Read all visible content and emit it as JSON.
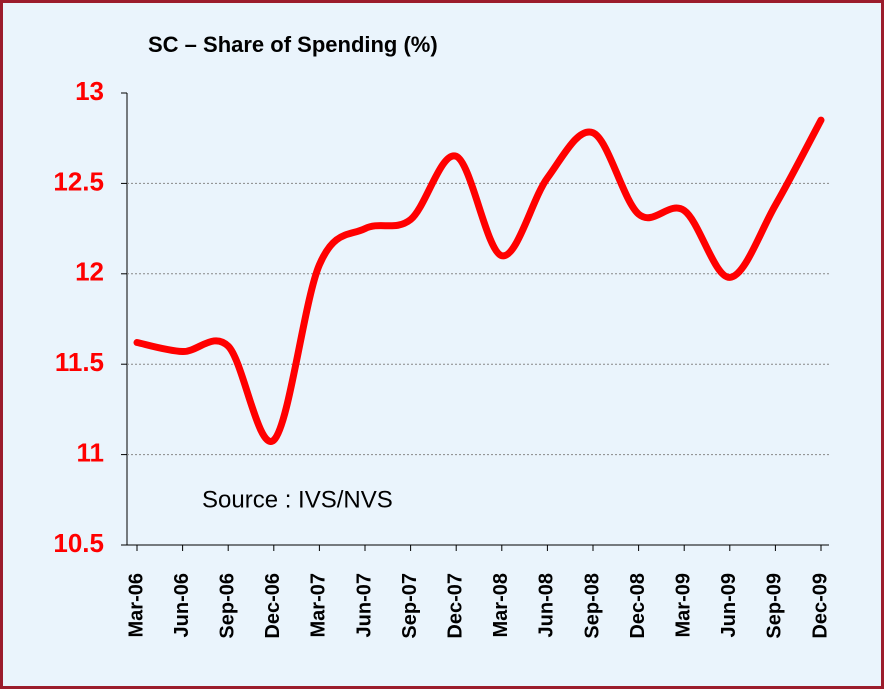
{
  "chart_data": {
    "type": "line",
    "title": "SC – Share of Spending (%)",
    "annotation": "Source :  IVS/NVS",
    "categories": [
      "Mar-06",
      "Jun-06",
      "Sep-06",
      "Dec-06",
      "Mar-07",
      "Jun-07",
      "Sep-07",
      "Dec-07",
      "Mar-08",
      "Jun-08",
      "Sep-08",
      "Dec-08",
      "Mar-09",
      "Jun-09",
      "Sep-09",
      "Dec-09"
    ],
    "values": [
      11.62,
      11.57,
      11.6,
      11.08,
      12.05,
      12.25,
      12.3,
      12.65,
      12.1,
      12.53,
      12.78,
      12.33,
      12.35,
      11.98,
      12.38,
      12.85
    ],
    "color": "#ff0000",
    "ylim": [
      10.5,
      13
    ],
    "yticks": [
      10.5,
      11,
      11.5,
      12,
      12.5,
      13
    ],
    "grid": true
  }
}
